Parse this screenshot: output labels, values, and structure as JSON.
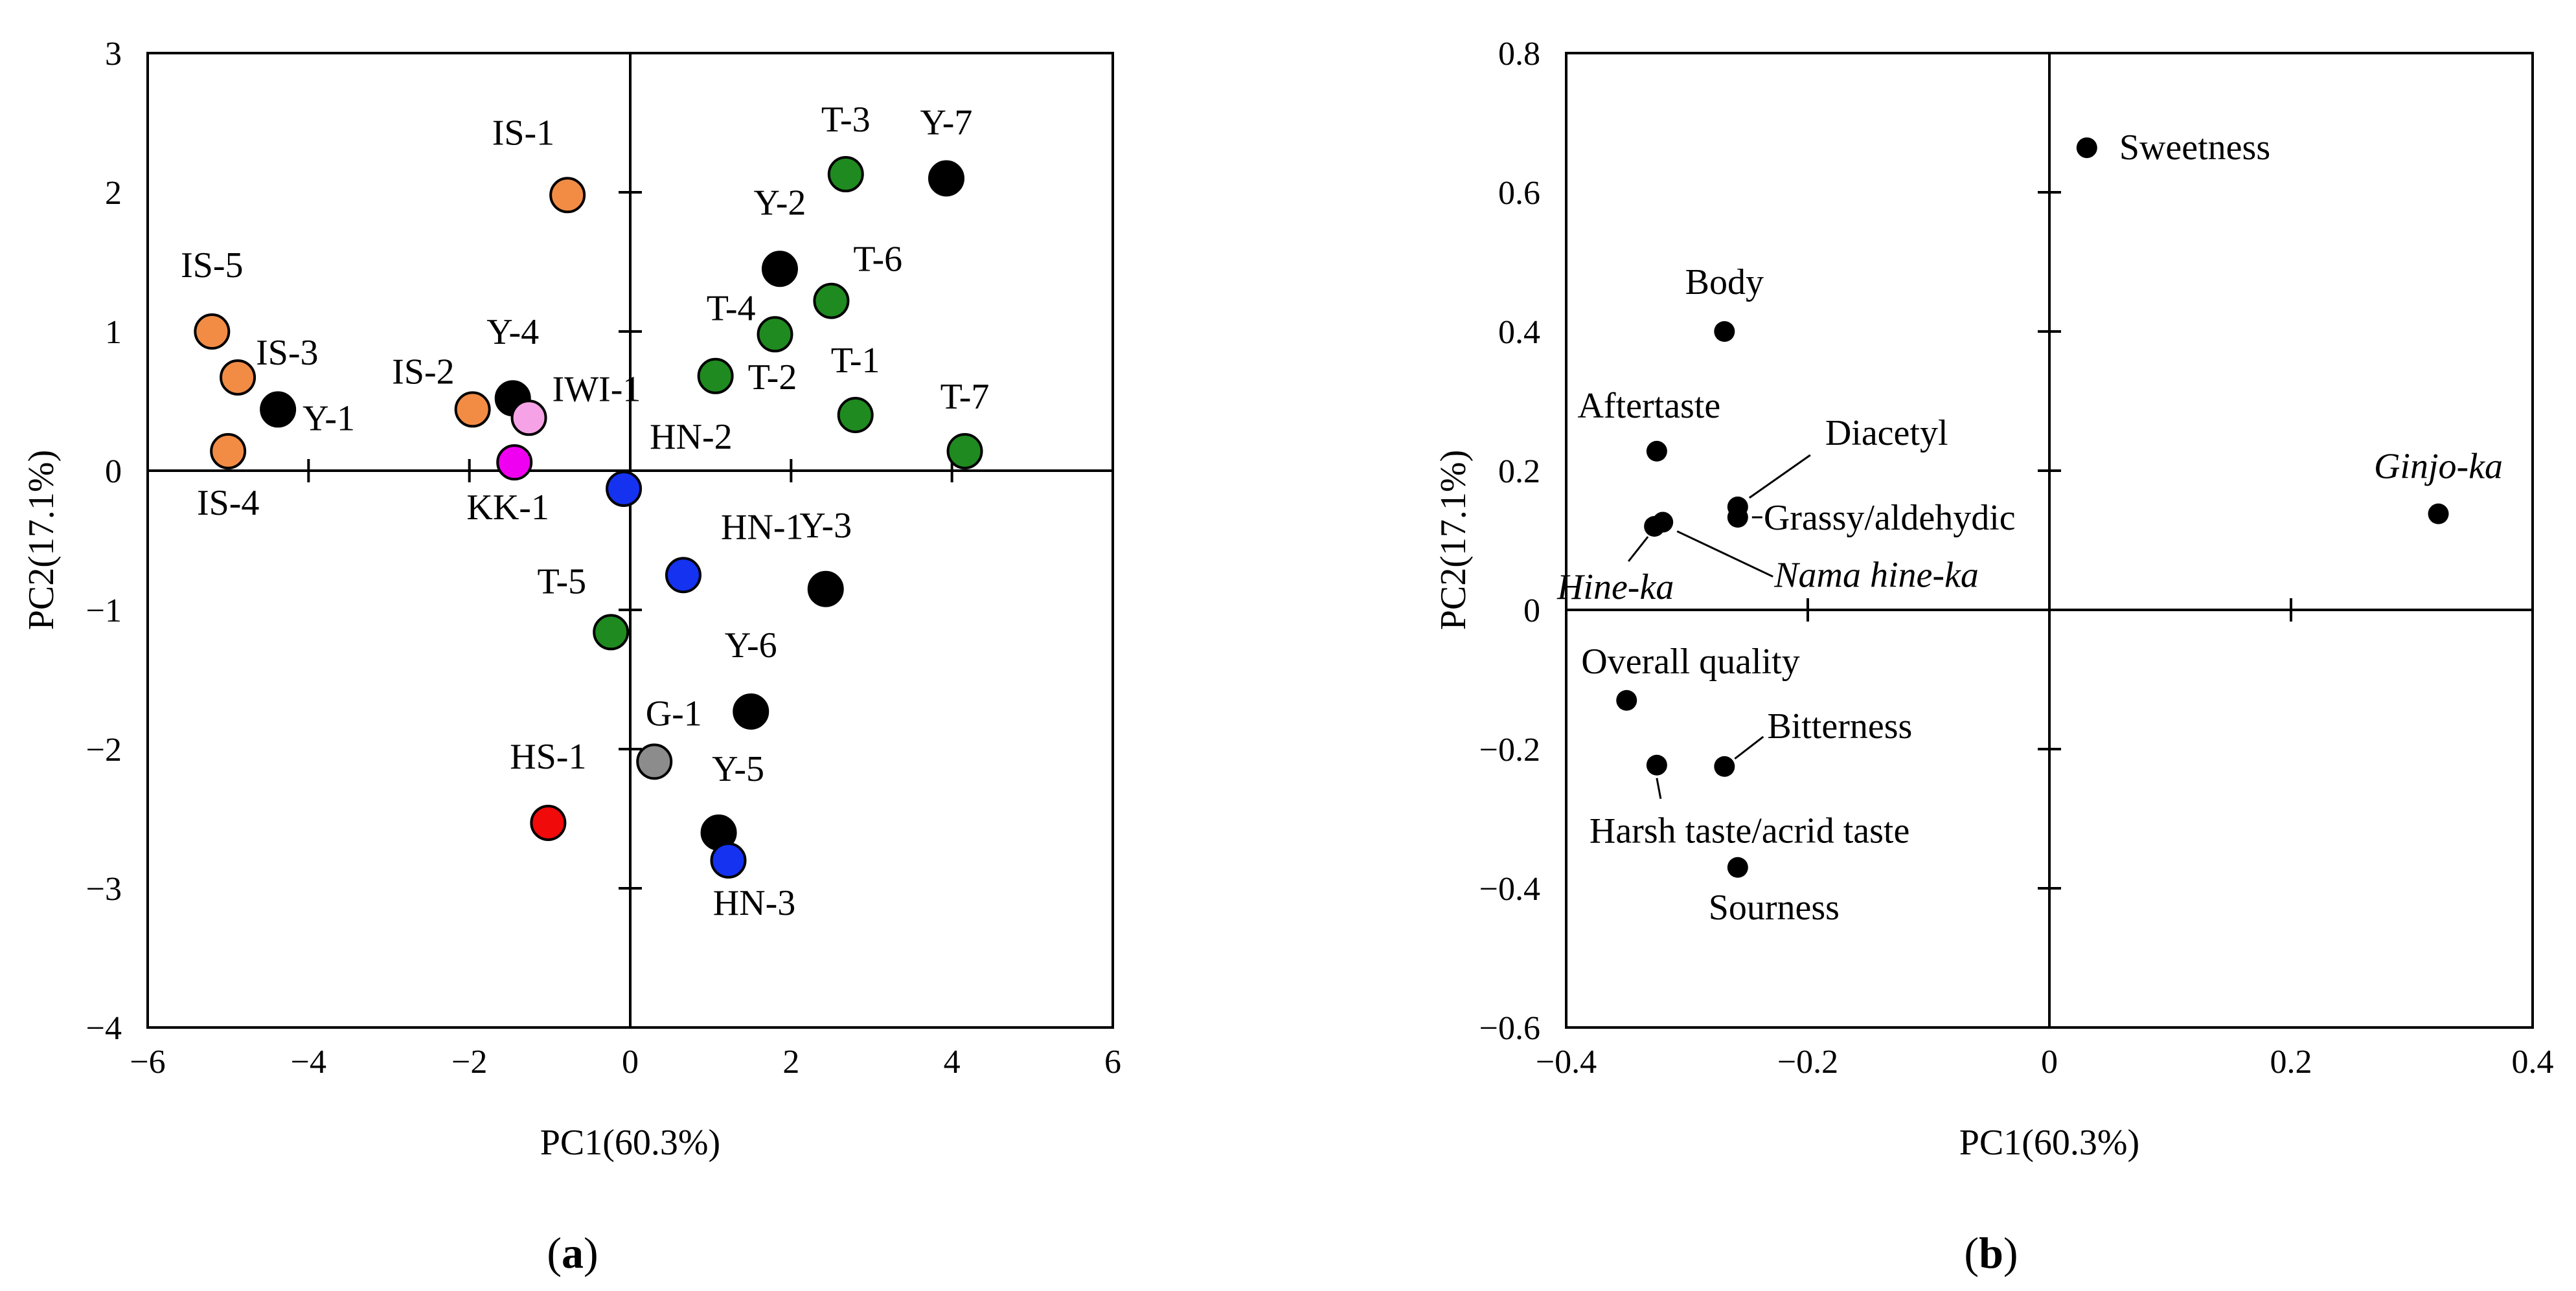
{
  "chart_data": [
    {
      "type": "scatter",
      "panel_label": "(a)",
      "xlabel": "PC1(60.3%)",
      "ylabel": "PC2(17.1%)",
      "xlim": [
        -6,
        6
      ],
      "ylim": [
        -4,
        3
      ],
      "xticks": [
        -6,
        -4,
        -2,
        0,
        2,
        4,
        6
      ],
      "yticks": [
        -4,
        -3,
        -2,
        -1,
        0,
        1,
        2,
        3
      ],
      "colors": {
        "IS": "#F28C45",
        "T": "#1F8A1F",
        "Y": "#000000",
        "HN": "#1432F0",
        "KK": "#F000F0",
        "IWI": "#F5A3E6",
        "G": "#8C8C8C",
        "HS": "#F00A0A"
      },
      "points": [
        {
          "label": "IS-1",
          "x": -0.78,
          "y": 1.98,
          "group": "IS"
        },
        {
          "label": "IS-2",
          "x": -1.96,
          "y": 0.44,
          "group": "IS"
        },
        {
          "label": "IS-3",
          "x": -4.88,
          "y": 0.67,
          "group": "IS"
        },
        {
          "label": "IS-4",
          "x": -5.0,
          "y": 0.14,
          "group": "IS"
        },
        {
          "label": "IS-5",
          "x": -5.2,
          "y": 1.0,
          "group": "IS"
        },
        {
          "label": "Y-1",
          "x": -4.38,
          "y": 0.44,
          "group": "Y"
        },
        {
          "label": "Y-2",
          "x": 1.86,
          "y": 1.45,
          "group": "Y"
        },
        {
          "label": "Y-3",
          "x": 2.43,
          "y": -0.85,
          "group": "Y"
        },
        {
          "label": "Y-4",
          "x": -1.46,
          "y": 0.52,
          "group": "Y"
        },
        {
          "label": "Y-5",
          "x": 1.1,
          "y": -2.6,
          "group": "Y"
        },
        {
          "label": "Y-6",
          "x": 1.5,
          "y": -1.73,
          "group": "Y"
        },
        {
          "label": "Y-7",
          "x": 3.93,
          "y": 2.1,
          "group": "Y"
        },
        {
          "label": "T-1",
          "x": 2.8,
          "y": 0.4,
          "group": "T"
        },
        {
          "label": "T-2",
          "x": 1.06,
          "y": 0.68,
          "group": "T"
        },
        {
          "label": "T-3",
          "x": 2.68,
          "y": 2.13,
          "group": "T"
        },
        {
          "label": "T-4",
          "x": 1.8,
          "y": 0.98,
          "group": "T"
        },
        {
          "label": "T-5",
          "x": -0.24,
          "y": -1.16,
          "group": "T"
        },
        {
          "label": "T-6",
          "x": 2.5,
          "y": 1.22,
          "group": "T"
        },
        {
          "label": "T-7",
          "x": 4.16,
          "y": 0.14,
          "group": "T"
        },
        {
          "label": "HN-1",
          "x": 0.66,
          "y": -0.75,
          "group": "HN"
        },
        {
          "label": "HN-2",
          "x": -0.08,
          "y": -0.13,
          "group": "HN"
        },
        {
          "label": "HN-3",
          "x": 1.22,
          "y": -2.8,
          "group": "HN"
        },
        {
          "label": "KK-1",
          "x": -1.44,
          "y": 0.06,
          "group": "KK"
        },
        {
          "label": "IWI-1",
          "x": -1.26,
          "y": 0.38,
          "group": "IWI"
        },
        {
          "label": "G-1",
          "x": 0.3,
          "y": -2.09,
          "group": "G"
        },
        {
          "label": "HS-1",
          "x": -1.02,
          "y": -2.53,
          "group": "HS"
        }
      ]
    },
    {
      "type": "scatter",
      "panel_label": "(b)",
      "xlabel": "PC1(60.3%)",
      "ylabel": "PC2(17.1%)",
      "xlim": [
        -0.4,
        0.4
      ],
      "ylim": [
        -0.6,
        0.8
      ],
      "xticks": [
        -0.4,
        -0.2,
        0,
        0.2,
        0.4
      ],
      "yticks": [
        -0.6,
        -0.4,
        -0.2,
        0,
        0.2,
        0.4,
        0.6,
        0.8
      ],
      "tick_labels_x": [
        "−0.4",
        "−0.2",
        "0",
        "0.2",
        "0.4"
      ],
      "tick_labels_y": [
        "−0.6",
        "−0.4",
        "−0.2",
        "0",
        "0.2",
        "0.4",
        "0.6",
        "0.8"
      ],
      "points": [
        {
          "label": "Sweetness",
          "x": 0.031,
          "y": 0.664,
          "italic": false
        },
        {
          "label": "Body",
          "x": -0.269,
          "y": 0.4,
          "italic": false
        },
        {
          "label": "Aftertaste",
          "x": -0.325,
          "y": 0.228,
          "italic": false
        },
        {
          "label": "Diacetyl",
          "x": -0.258,
          "y": 0.148,
          "italic": false
        },
        {
          "label": "Grassy/aldehydic",
          "x": -0.258,
          "y": 0.133,
          "italic": false
        },
        {
          "label": "Hine-ka",
          "x": -0.327,
          "y": 0.12,
          "italic": true
        },
        {
          "label": "Nama hine-ka",
          "x": -0.32,
          "y": 0.126,
          "italic": true
        },
        {
          "label": "Ginjo-ka",
          "x": 0.322,
          "y": 0.138,
          "italic": true
        },
        {
          "label": "Overall quality",
          "x": -0.35,
          "y": -0.13,
          "italic": false
        },
        {
          "label": "Bitterness",
          "x": -0.269,
          "y": -0.225,
          "italic": false
        },
        {
          "label": "Harsh taste/acrid taste",
          "x": -0.325,
          "y": -0.223,
          "italic": false
        },
        {
          "label": "Sourness",
          "x": -0.258,
          "y": -0.37,
          "italic": false
        }
      ]
    }
  ]
}
